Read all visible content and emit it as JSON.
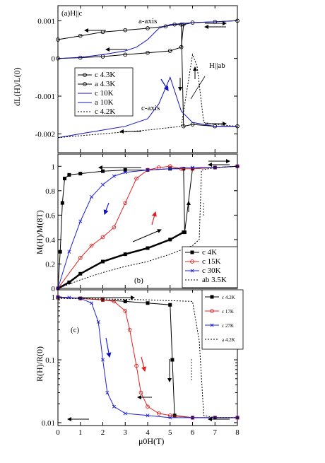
{
  "chart_data": [
    {
      "panel": "a",
      "type": "line",
      "annotation_label": "(a)H||c",
      "xlabel": "",
      "ylabel": "dL(H)/L(0)",
      "xlim": [
        0,
        8
      ],
      "ylim": [
        -0.0025,
        0.0014
      ],
      "yticks": [
        0.001,
        0,
        -0.001,
        -0.002
      ],
      "ytick_labels": [
        "0.001",
        "0",
        "-0.001",
        "-0.002"
      ],
      "text_labels": [
        "a-axis",
        "c-axis",
        "H||ab"
      ],
      "legend_position": "left",
      "series": [
        {
          "name": "c 4.3K",
          "color": "#000000",
          "marker": "circle",
          "x": [
            0,
            1,
            2,
            3,
            4,
            4.8,
            5.2,
            5.5,
            5.6,
            6,
            7,
            8
          ],
          "y": [
            0.0005,
            0.0006,
            0.0007,
            0.00075,
            0.0008,
            0.00085,
            0.0009,
            0.0009,
            -0.0018,
            -0.00175,
            -0.0018,
            -0.0018
          ]
        },
        {
          "name": "a 4.3K",
          "color": "#000000",
          "marker": "circle",
          "x": [
            0,
            1,
            2,
            3,
            4,
            5,
            5.5,
            5.6,
            6,
            7,
            8
          ],
          "y": [
            0,
            2e-05,
            5e-05,
            0.0001,
            0.00015,
            0.0002,
            0.0003,
            0.0009,
            0.00095,
            0.00097,
            0.001
          ]
        },
        {
          "name": "c 10K",
          "color": "#1010c0",
          "marker": "none",
          "x": [
            0,
            0.5,
            1,
            2,
            3,
            3.5,
            4,
            4.5,
            5,
            5.5,
            6,
            7,
            8
          ],
          "y": [
            -0.0021,
            -0.00205,
            -0.002,
            -0.0019,
            -0.0018,
            -0.0017,
            -0.0016,
            -0.0012,
            -0.0005,
            -0.0014,
            -0.0017,
            -0.0018,
            -0.0018
          ]
        },
        {
          "name": "a 10K",
          "color": "#1010c0",
          "marker": "none",
          "x": [
            0,
            1,
            2,
            3,
            3.5,
            4,
            4.5,
            5,
            6,
            7,
            8
          ],
          "y": [
            0,
            3e-05,
            0.0001,
            0.0002,
            0.0003,
            0.0005,
            0.0008,
            0.0009,
            0.00095,
            0.00097,
            0.001
          ]
        },
        {
          "name": "c 4.2K",
          "color": "#000000",
          "marker": "none",
          "dash": true,
          "x": [
            0,
            2,
            4,
            5.5,
            6,
            6.2,
            6.5,
            7,
            8
          ],
          "y": [
            -0.0021,
            -0.002,
            -0.0019,
            -0.0018,
            0.0001,
            -0.0002,
            -0.0017,
            -0.00175,
            -0.0018
          ]
        }
      ]
    },
    {
      "panel": "b",
      "type": "line",
      "annotation_label": "(b)",
      "xlabel": "",
      "ylabel": "M(H)/M(8T)",
      "xlim": [
        0,
        8
      ],
      "ylim": [
        0,
        1.1
      ],
      "yticks": [
        0,
        0.2,
        0.4,
        0.6,
        0.8,
        1
      ],
      "ytick_labels": [
        "0",
        "0.2",
        "0.4",
        "0.6",
        "0.8",
        "1"
      ],
      "legend_position": "bottom-right",
      "series": [
        {
          "name": "c 4K",
          "color": "#000000",
          "marker": "square",
          "x": [
            0,
            0.1,
            0.2,
            0.3,
            0.5,
            1,
            2,
            3,
            4,
            5,
            5.6,
            5.65,
            6,
            7,
            8
          ],
          "y": [
            0,
            0.3,
            0.7,
            0.9,
            0.93,
            0.94,
            0.96,
            0.97,
            0.97,
            0.98,
            0.98,
            0.46,
            0.98,
            0.99,
            1.0
          ],
          "return_x": [
            0,
            0.5,
            1,
            2,
            3,
            4,
            5,
            5.6
          ],
          "return_y": [
            0,
            0.05,
            0.12,
            0.22,
            0.28,
            0.33,
            0.4,
            0.46
          ]
        },
        {
          "name": "c 15K",
          "color": "#e02020",
          "marker": "circle",
          "x": [
            0,
            1,
            1.5,
            2,
            2.5,
            3,
            3.5,
            4,
            4.5,
            5,
            5.5,
            6,
            7,
            8
          ],
          "y": [
            0,
            0.25,
            0.35,
            0.42,
            0.5,
            0.7,
            0.9,
            0.97,
            0.99,
            1.0,
            0.98,
            0.98,
            0.99,
            1.0
          ]
        },
        {
          "name": "c 30K",
          "color": "#2020d0",
          "marker": "x",
          "x": [
            0,
            0.5,
            1,
            1.5,
            2,
            2.5,
            3,
            4,
            5,
            6,
            7,
            8
          ],
          "y": [
            0,
            0.3,
            0.55,
            0.75,
            0.85,
            0.92,
            0.95,
            0.97,
            0.98,
            0.99,
            0.99,
            1.0
          ]
        },
        {
          "name": "ab 3.5K",
          "color": "#000000",
          "marker": "none",
          "dash": true,
          "x": [
            0,
            1,
            2,
            3,
            4,
            5,
            6,
            6.3,
            6.4,
            7,
            8
          ],
          "y": [
            0,
            0.07,
            0.13,
            0.18,
            0.22,
            0.28,
            0.35,
            0.4,
            0.97,
            0.99,
            1.0
          ]
        }
      ]
    },
    {
      "panel": "c",
      "type": "line",
      "annotation_label": "(c)",
      "xlabel": "μ0H(T)",
      "ylabel": "R(H)/R(0)",
      "xlim": [
        0,
        8
      ],
      "ylim": [
        0.009,
        1.3
      ],
      "yscale": "log",
      "xticks": [
        0,
        1,
        2,
        3,
        4,
        5,
        6,
        7,
        8
      ],
      "xtick_labels": [
        "0",
        "1",
        "2",
        "3",
        "4",
        "5",
        "6",
        "7",
        "8"
      ],
      "yticks": [
        1,
        0.1,
        0.01
      ],
      "ytick_labels": [
        "1",
        "0.1",
        "0.01"
      ],
      "legend_position": "top-right",
      "series": [
        {
          "name": "c 4.2K",
          "color": "#000000",
          "marker": "square",
          "x": [
            0,
            1,
            2,
            3,
            4,
            5,
            5.1,
            5.2,
            6,
            7,
            8
          ],
          "y": [
            0.98,
            0.95,
            0.9,
            0.85,
            0.8,
            0.75,
            0.1,
            0.013,
            0.012,
            0.012,
            0.012
          ]
        },
        {
          "name": "c 17K",
          "color": "#e02020",
          "marker": "circle",
          "x": [
            0,
            1,
            2,
            2.5,
            3,
            3.2,
            3.5,
            3.7,
            4,
            4.5,
            5,
            6,
            7,
            8
          ],
          "y": [
            1.0,
            0.95,
            0.9,
            0.85,
            0.6,
            0.3,
            0.08,
            0.03,
            0.018,
            0.014,
            0.013,
            0.012,
            0.012,
            0.012
          ]
        },
        {
          "name": "c 27K",
          "color": "#2020d0",
          "marker": "x",
          "x": [
            0,
            0.5,
            1,
            1.5,
            1.8,
            2,
            2.2,
            2.5,
            3,
            4,
            5,
            6,
            7,
            8
          ],
          "y": [
            1.0,
            0.98,
            0.95,
            0.8,
            0.4,
            0.1,
            0.03,
            0.018,
            0.014,
            0.013,
            0.012,
            0.012,
            0.012,
            0.012
          ]
        },
        {
          "name": "a 4.2K",
          "color": "#000000",
          "marker": "none",
          "dash": true,
          "x": [
            0,
            2,
            4,
            6,
            6.3,
            6.5,
            7,
            8
          ],
          "y": [
            0.95,
            0.93,
            0.9,
            0.85,
            0.2,
            0.013,
            0.012,
            0.012
          ]
        }
      ]
    }
  ]
}
